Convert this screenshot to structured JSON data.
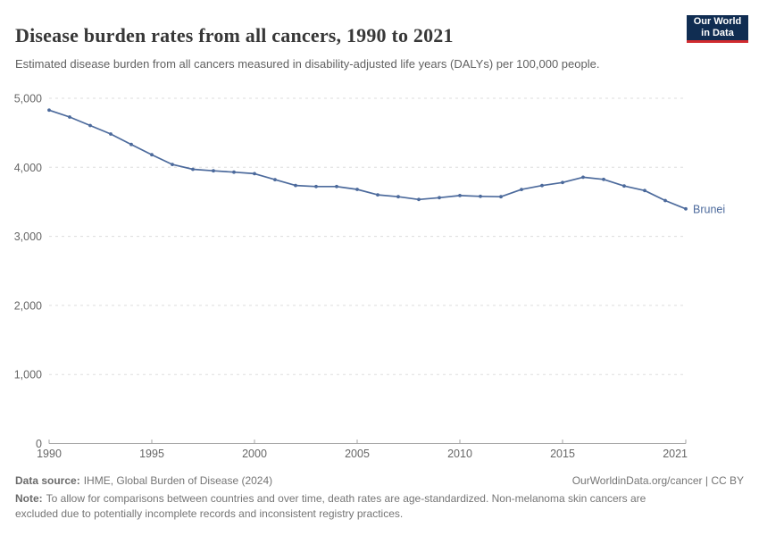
{
  "header": {
    "title": "Disease burden rates from all cancers, 1990 to 2021",
    "subtitle": "Estimated disease burden from all cancers measured in disability-adjusted life years (DALYs) per 100,000 people.",
    "logo": {
      "line1": "Our World",
      "line2": "in Data"
    }
  },
  "chart_data": {
    "type": "line",
    "title": "Disease burden rates from all cancers, 1990 to 2021",
    "ylabel": "",
    "xlabel": "",
    "ylim": [
      0,
      5000
    ],
    "yticks": [
      0,
      1000,
      2000,
      3000,
      4000,
      5000
    ],
    "ytick_labels": [
      "0",
      "1,000",
      "2,000",
      "3,000",
      "4,000",
      "5,000"
    ],
    "xticks": [
      1990,
      1995,
      2000,
      2005,
      2010,
      2015,
      2021
    ],
    "grid": "horizontal-dashed",
    "legend": "end-of-line-label",
    "series": [
      {
        "name": "Brunei",
        "color": "#4C6A9C",
        "x": [
          1990,
          1991,
          1992,
          1993,
          1994,
          1995,
          1996,
          1997,
          1998,
          1999,
          2000,
          2001,
          2002,
          2003,
          2004,
          2005,
          2006,
          2007,
          2008,
          2009,
          2010,
          2011,
          2012,
          2013,
          2014,
          2015,
          2016,
          2017,
          2018,
          2019,
          2020,
          2021
        ],
        "values": [
          4828,
          4728,
          4605,
          4483,
          4331,
          4183,
          4042,
          3972,
          3950,
          3930,
          3908,
          3822,
          3737,
          3722,
          3722,
          3680,
          3601,
          3574,
          3534,
          3560,
          3591,
          3580,
          3574,
          3679,
          3736,
          3780,
          3856,
          3826,
          3730,
          3664,
          3519,
          3399
        ]
      }
    ]
  },
  "footer": {
    "datasource_label": "Data source:",
    "datasource": "IHME, Global Burden of Disease (2024)",
    "link": "OurWorldinData.org/cancer | CC BY",
    "note_label": "Note:",
    "note": "To allow for comparisons between countries and over time, death rates are age-standardized. Non-melanoma skin cancers are excluded due to potentially incomplete records and inconsistent registry practices."
  },
  "colors": {
    "line": "#4C6A9C",
    "entity_label": "#4C6A9C",
    "logo_bg": "#102D52",
    "logo_stripe": "#D12B2F",
    "grid": "#DDDDDD",
    "axis": "#A5A5A5",
    "tick_text": "#666666",
    "title_text": "#383838",
    "subtitle_text": "#616161",
    "footer_text": "#757575"
  }
}
